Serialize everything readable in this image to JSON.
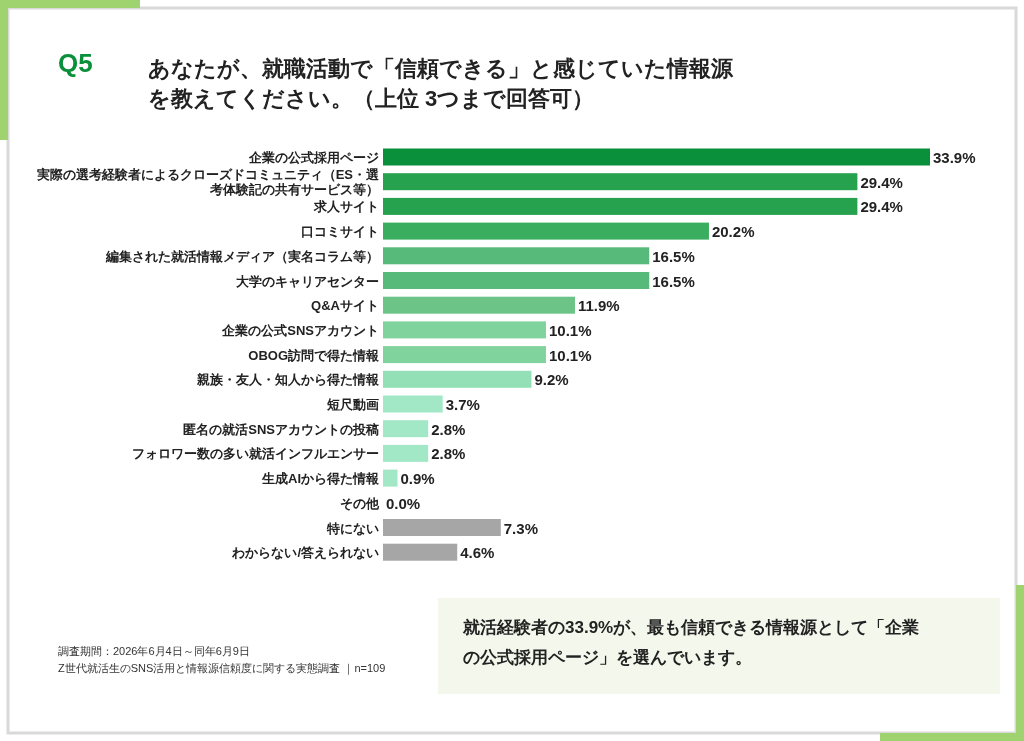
{
  "chart_data": {
    "type": "bar",
    "orientation": "horizontal",
    "title": "Q5",
    "subtitle": "あなたが、就職活動で「信頼できる」と感じていた情報源を教えてください。（上位 3つまで回答可）",
    "categories": [
      "企業の公式採用ページ",
      "実際の選考経験者によるクローズドコミュニティ（ES・選考体験記の共有サービス等）",
      "求人サイト",
      "口コミサイト",
      "編集された就活情報メディア（実名コラム等）",
      "大学のキャリアセンター",
      "Q&Aサイト",
      "企業の公式SNSアカウント",
      "OBOG訪問で得た情報",
      "親族・友人・知人から得た情報",
      "短尺動画",
      "匿名の就活SNSアカウントの投稿",
      "フォロワー数の多い就活インフルエンサー",
      "生成AIから得た情報",
      "その他",
      "特にない",
      "わからない/答えられない"
    ],
    "values": [
      33.9,
      29.4,
      29.4,
      20.2,
      16.5,
      16.5,
      11.9,
      10.1,
      10.1,
      9.2,
      3.7,
      2.8,
      2.8,
      0.9,
      0.0,
      7.3,
      4.6
    ],
    "value_labels": [
      "33.9%",
      "29.4%",
      "29.4%",
      "20.2%",
      "16.5%",
      "16.5%",
      "11.9%",
      "10.1%",
      "10.1%",
      "9.2%",
      "3.7%",
      "2.8%",
      "2.8%",
      "0.9%",
      "0.0%",
      "7.3%",
      "4.6%"
    ],
    "colors": [
      "#0a8f3a",
      "#26a14e",
      "#26a14e",
      "#3aad5f",
      "#57b97a",
      "#57b97a",
      "#6cc486",
      "#80d39c",
      "#80d39c",
      "#94e0b6",
      "#a3e8c6",
      "#a3e8c6",
      "#a3e8c6",
      "#a3e8c6",
      "#a3e8c6",
      "#a6a6a6",
      "#a6a6a6"
    ],
    "annotations": [
      "就活経験者の33.9%が、最も信頼できる情報源として「企業の公式採用ページ」を選んでいます。",
      "調査期間：2026年6月4日～同年6月9日",
      "Z世代就活生のSNS活用と情報源信頼度に関する実態調査 ｜n=109"
    ]
  }
}
